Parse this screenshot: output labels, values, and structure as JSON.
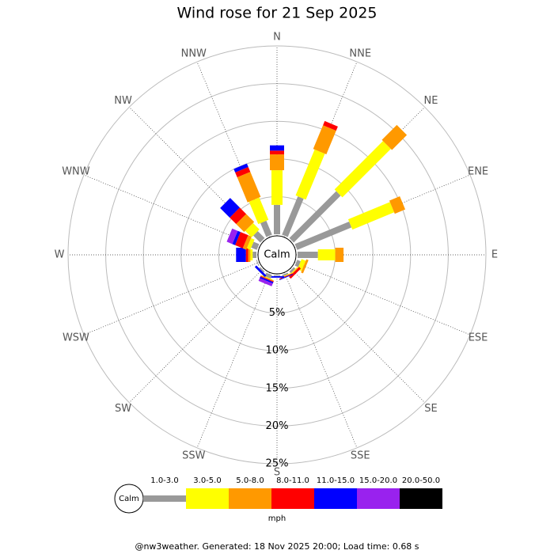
{
  "chart_data": {
    "type": "windrose",
    "title": "Wind rose for 21 Sep 2025",
    "categories": [
      "N",
      "NNE",
      "NE",
      "ENE",
      "E",
      "ESE",
      "SE",
      "SSE",
      "S",
      "SSW",
      "SW",
      "WSW",
      "W",
      "WNW",
      "NW",
      "NNW"
    ],
    "calm_label": "Calm",
    "rlim": [
      0,
      25
    ],
    "rticks": [
      {
        "value": 5,
        "label": "5%"
      },
      {
        "value": 10,
        "label": "10%"
      },
      {
        "value": 15,
        "label": "15%"
      },
      {
        "value": 20,
        "label": "20%"
      },
      {
        "value": 25,
        "label": "25%"
      }
    ],
    "legend_units": "mph",
    "series": [
      {
        "name": "1.0-3.0",
        "color": "#999999",
        "values": [
          3.9,
          5.5,
          8.8,
          7.8,
          2.7,
          0.5,
          0.3,
          0.2,
          0.1,
          0.5,
          0.2,
          0.1,
          0.5,
          0.8,
          1.3,
          2.0
        ]
      },
      {
        "name": "3.0-5.0",
        "color": "#ffff00",
        "values": [
          4.6,
          6.6,
          9.1,
          6.0,
          2.3,
          0.6,
          0.1,
          0.1,
          0,
          0.1,
          0,
          0,
          0.3,
          0.5,
          1.2,
          3.2
        ]
      },
      {
        "name": "5.0-8.0",
        "color": "#ff9900",
        "values": [
          2.1,
          3.4,
          2.8,
          1.5,
          1.1,
          0.3,
          0.1,
          0,
          0,
          0.1,
          0,
          0,
          0.3,
          0.5,
          1.5,
          3.6
        ]
      },
      {
        "name": "8.0-11.0",
        "color": "#ff0000",
        "values": [
          0.5,
          0.6,
          0,
          0,
          0,
          0,
          0.3,
          0.1,
          0,
          0.1,
          0,
          0,
          0.3,
          1.1,
          1.2,
          0.7
        ]
      },
      {
        "name": "11.0-15.0",
        "color": "#0000ff",
        "values": [
          0.7,
          0,
          0,
          0,
          0,
          0,
          0,
          0.1,
          0.2,
          0.2,
          0.3,
          0,
          1.3,
          0.4,
          1.8,
          0.5
        ]
      },
      {
        "name": "15.0-20.0",
        "color": "#9922ee",
        "values": [
          0,
          0,
          0,
          0,
          0,
          0,
          0,
          0,
          0,
          0.4,
          0,
          0,
          0,
          0.8,
          0,
          0
        ]
      },
      {
        "name": "20.0-50.0",
        "color": "#000000",
        "values": [
          0,
          0,
          0,
          0,
          0,
          0,
          0,
          0,
          0,
          0,
          0,
          0,
          0,
          0,
          0,
          0
        ]
      }
    ],
    "footer": "@nw3weather. Generated: 18 Nov 2025 20:00; Load time: 0.68 s"
  }
}
